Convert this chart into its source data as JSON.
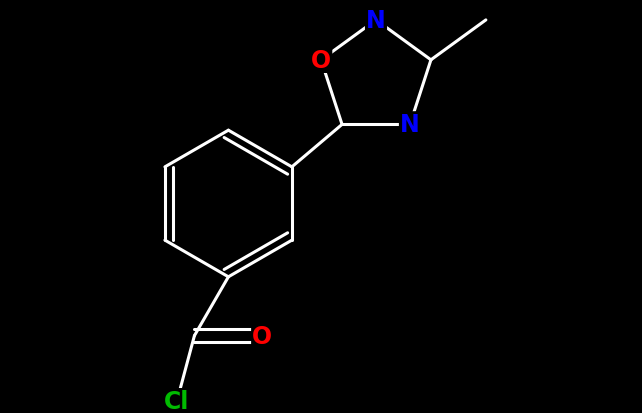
{
  "background_color": "#000000",
  "bond_color": "#ffffff",
  "atom_colors": {
    "O": "#ff0000",
    "N": "#0000ff",
    "Cl": "#00bb00",
    "C": "#ffffff"
  },
  "bond_width": 2.2,
  "figsize": [
    6.42,
    4.14
  ],
  "dpi": 100
}
